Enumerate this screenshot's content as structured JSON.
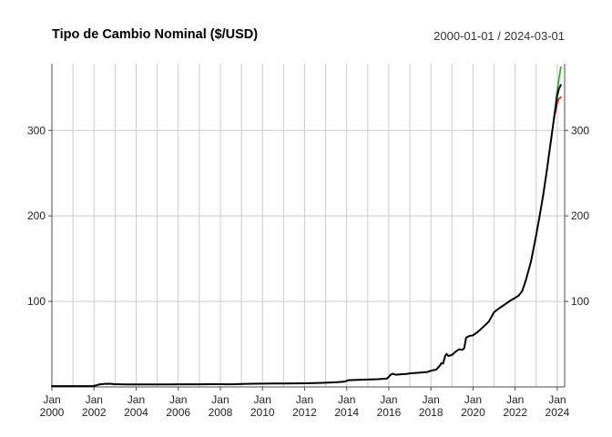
{
  "header": {
    "title": "Tipo de Cambio Nominal ($/USD)",
    "date_range": "2000-01-01 / 2024-03-01"
  },
  "chart_data": {
    "type": "line",
    "title": "Tipo de Cambio Nominal ($/USD)",
    "subtitle": "2000-01-01 / 2024-03-01",
    "grid": {
      "color": "#cccccc",
      "vertical_every_year": true
    },
    "axis_color": "#4d4d4d",
    "label_color": "#222222",
    "x_axis": {
      "month_label": "Jan",
      "ticks": [
        2000,
        2002,
        2004,
        2006,
        2008,
        2010,
        2012,
        2014,
        2016,
        2018,
        2020,
        2022,
        2024
      ],
      "range": [
        2000,
        2024.35
      ]
    },
    "y_axis": {
      "ticks": [
        100,
        200,
        300
      ],
      "range": [
        0,
        378
      ]
    },
    "series": [
      {
        "name": "green-line",
        "color": "#2bb52b",
        "width": 1.8,
        "points": [
          [
            2023.83,
            312
          ],
          [
            2023.92,
            330
          ],
          [
            2024.0,
            347
          ],
          [
            2024.08,
            361
          ],
          [
            2024.17,
            374
          ]
        ]
      },
      {
        "name": "red-line",
        "color": "#d62f2f",
        "width": 1.8,
        "points": [
          [
            2023.83,
            312
          ],
          [
            2023.92,
            323
          ],
          [
            2024.0,
            332
          ],
          [
            2024.08,
            337
          ],
          [
            2024.17,
            339
          ]
        ]
      },
      {
        "name": "black-observed",
        "color": "#000000",
        "width": 2,
        "points": [
          [
            2000.0,
            1.0
          ],
          [
            2000.5,
            1.0
          ],
          [
            2001.0,
            1.0
          ],
          [
            2001.5,
            1.0
          ],
          [
            2001.92,
            1.0
          ],
          [
            2002.08,
            1.7
          ],
          [
            2002.25,
            2.9
          ],
          [
            2002.5,
            3.6
          ],
          [
            2002.75,
            3.7
          ],
          [
            2003.0,
            3.2
          ],
          [
            2003.5,
            2.85
          ],
          [
            2004.0,
            2.9
          ],
          [
            2004.5,
            2.95
          ],
          [
            2005.0,
            2.9
          ],
          [
            2005.5,
            2.9
          ],
          [
            2006.0,
            3.05
          ],
          [
            2006.5,
            3.1
          ],
          [
            2007.0,
            3.1
          ],
          [
            2007.5,
            3.15
          ],
          [
            2008.0,
            3.15
          ],
          [
            2008.5,
            3.05
          ],
          [
            2009.0,
            3.45
          ],
          [
            2009.5,
            3.75
          ],
          [
            2010.0,
            3.8
          ],
          [
            2010.5,
            3.9
          ],
          [
            2011.0,
            4.0
          ],
          [
            2011.5,
            4.15
          ],
          [
            2012.0,
            4.3
          ],
          [
            2012.5,
            4.5
          ],
          [
            2013.0,
            4.95
          ],
          [
            2013.5,
            5.4
          ],
          [
            2013.92,
            6.3
          ],
          [
            2014.08,
            7.9
          ],
          [
            2014.5,
            8.15
          ],
          [
            2015.0,
            8.6
          ],
          [
            2015.5,
            9.05
          ],
          [
            2015.92,
            9.8
          ],
          [
            2016.08,
            14.2
          ],
          [
            2016.17,
            15.4
          ],
          [
            2016.33,
            14.3
          ],
          [
            2016.58,
            14.8
          ],
          [
            2016.83,
            15.2
          ],
          [
            2017.0,
            15.9
          ],
          [
            2017.5,
            16.7
          ],
          [
            2017.83,
            17.5
          ],
          [
            2018.0,
            19.0
          ],
          [
            2018.25,
            20.2
          ],
          [
            2018.42,
            24.8
          ],
          [
            2018.5,
            27.9
          ],
          [
            2018.58,
            27.3
          ],
          [
            2018.67,
            36.0
          ],
          [
            2018.75,
            38.6
          ],
          [
            2018.83,
            36.2
          ],
          [
            2019.0,
            37.4
          ],
          [
            2019.17,
            41.2
          ],
          [
            2019.33,
            43.9
          ],
          [
            2019.5,
            43.5
          ],
          [
            2019.58,
            45.3
          ],
          [
            2019.67,
            57.6
          ],
          [
            2019.83,
            59.6
          ],
          [
            2020.0,
            60.4
          ],
          [
            2020.25,
            64.8
          ],
          [
            2020.5,
            70.6
          ],
          [
            2020.75,
            76.5
          ],
          [
            2021.0,
            87.4
          ],
          [
            2021.25,
            92.1
          ],
          [
            2021.5,
            96.3
          ],
          [
            2021.75,
            100.6
          ],
          [
            2022.0,
            104.2
          ],
          [
            2022.17,
            106.9
          ],
          [
            2022.33,
            112.0
          ],
          [
            2022.5,
            124.1
          ],
          [
            2022.75,
            146.5
          ],
          [
            2023.0,
            177.8
          ],
          [
            2023.17,
            201.0
          ],
          [
            2023.33,
            224.0
          ],
          [
            2023.5,
            252.0
          ],
          [
            2023.67,
            283.0
          ],
          [
            2023.83,
            312.0
          ],
          [
            2023.92,
            327.0
          ],
          [
            2024.0,
            341.0
          ],
          [
            2024.08,
            349.0
          ],
          [
            2024.17,
            353.0
          ]
        ]
      }
    ]
  }
}
